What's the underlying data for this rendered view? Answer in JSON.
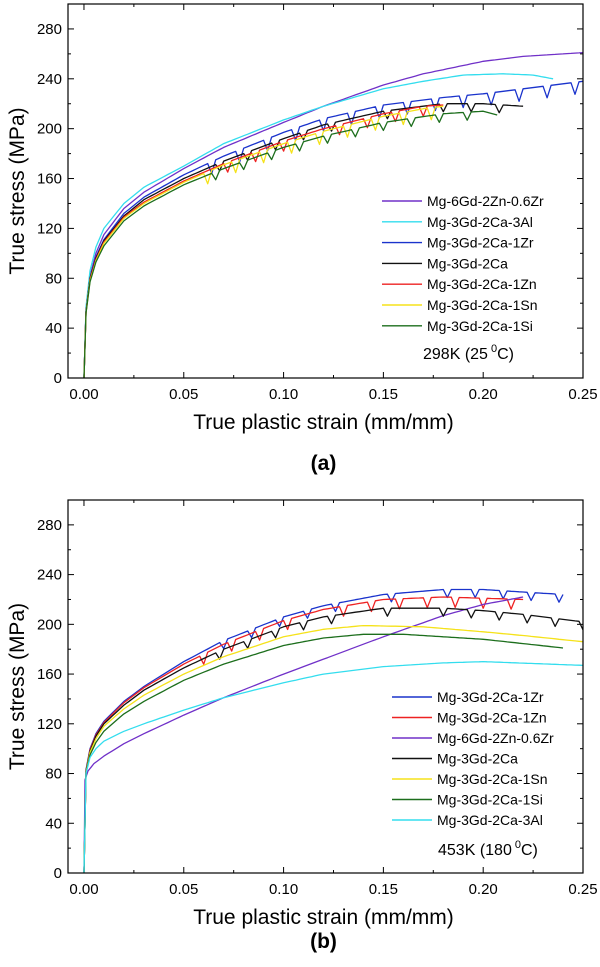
{
  "chart_data": [
    {
      "type": "line",
      "panel_label": "(a)",
      "xlabel": "True plastic strain (mm/mm)",
      "ylabel": "True stress (MPa)",
      "xlim": [
        -0.008,
        0.25
      ],
      "ylim": [
        0,
        300
      ],
      "xticks": [
        "0.00",
        "0.05",
        "0.10",
        "0.15",
        "0.20",
        "0.25"
      ],
      "yticks": [
        "0",
        "40",
        "80",
        "120",
        "160",
        "200",
        "240",
        "280"
      ],
      "annotation": {
        "main": "298K (25",
        "sup": "0",
        "tail": "C)"
      },
      "legend_position": "lower-right",
      "series": [
        {
          "name": "Mg-6Gd-2Zn-0.6Zr",
          "color": "#7030C8",
          "serrated": false,
          "x": [
            0,
            0.001,
            0.003,
            0.006,
            0.01,
            0.02,
            0.03,
            0.05,
            0.07,
            0.1,
            0.12,
            0.15,
            0.17,
            0.2,
            0.22,
            0.25
          ],
          "y": [
            0,
            55,
            82,
            100,
            115,
            136,
            149,
            168,
            185,
            205,
            218,
            235,
            244,
            254,
            258,
            261
          ]
        },
        {
          "name": "Mg-3Gd-2Ca-3Al",
          "color": "#33DDEE",
          "serrated": false,
          "x": [
            0,
            0.001,
            0.003,
            0.006,
            0.01,
            0.02,
            0.03,
            0.05,
            0.07,
            0.1,
            0.12,
            0.15,
            0.17,
            0.19,
            0.21,
            0.225,
            0.235
          ],
          "y": [
            0,
            57,
            86,
            105,
            120,
            140,
            153,
            170,
            188,
            207,
            218,
            232,
            238,
            243,
            244,
            243,
            240
          ]
        },
        {
          "name": "Mg-3Gd-2Ca-1Zr",
          "color": "#1A33CC",
          "serrated": true,
          "x": [
            0,
            0.001,
            0.003,
            0.006,
            0.01,
            0.02,
            0.03,
            0.05,
            0.07,
            0.1,
            0.12,
            0.15,
            0.18,
            0.2,
            0.22,
            0.25
          ],
          "y": [
            0,
            53,
            80,
            97,
            111,
            132,
            145,
            163,
            178,
            197,
            208,
            219,
            225,
            228,
            232,
            238
          ]
        },
        {
          "name": "Mg-3Gd-2Ca",
          "color": "#111111",
          "serrated": true,
          "x": [
            0,
            0.001,
            0.003,
            0.006,
            0.01,
            0.02,
            0.03,
            0.05,
            0.07,
            0.1,
            0.12,
            0.15,
            0.18,
            0.2,
            0.22
          ],
          "y": [
            0,
            53,
            80,
            96,
            110,
            130,
            143,
            160,
            174,
            192,
            203,
            214,
            220,
            220,
            218
          ]
        },
        {
          "name": "Mg-3Gd-2Ca-1Zn",
          "color": "#EE2222",
          "serrated": true,
          "x": [
            0,
            0.001,
            0.003,
            0.006,
            0.01,
            0.02,
            0.03,
            0.05,
            0.07,
            0.1,
            0.12,
            0.15,
            0.17,
            0.18
          ],
          "y": [
            0,
            53,
            79,
            95,
            109,
            129,
            141,
            158,
            172,
            190,
            200,
            212,
            218,
            219
          ]
        },
        {
          "name": "Mg-3Gd-2Ca-1Sn",
          "color": "#F5E21A",
          "serrated": true,
          "x": [
            0,
            0.001,
            0.003,
            0.006,
            0.01,
            0.02,
            0.03,
            0.05,
            0.07,
            0.1,
            0.12,
            0.15,
            0.17,
            0.18
          ],
          "y": [
            0,
            52,
            78,
            94,
            108,
            128,
            140,
            157,
            171,
            188,
            198,
            210,
            216,
            218
          ]
        },
        {
          "name": "Mg-3Gd-2Ca-1Si",
          "color": "#1C6E1C",
          "serrated": true,
          "x": [
            0,
            0.001,
            0.003,
            0.006,
            0.01,
            0.02,
            0.03,
            0.05,
            0.07,
            0.1,
            0.12,
            0.15,
            0.18,
            0.2,
            0.207
          ],
          "y": [
            0,
            52,
            77,
            93,
            106,
            126,
            138,
            155,
            168,
            185,
            194,
            205,
            212,
            214,
            211
          ]
        }
      ]
    },
    {
      "type": "line",
      "panel_label": "(b)",
      "xlabel": "True plastic strain (mm/mm)",
      "ylabel": "True stress (MPa)",
      "xlim": [
        -0.008,
        0.25
      ],
      "ylim": [
        0,
        300
      ],
      "xticks": [
        "0.00",
        "0.05",
        "0.10",
        "0.15",
        "0.20",
        "0.25"
      ],
      "yticks": [
        "0",
        "40",
        "80",
        "120",
        "160",
        "200",
        "240",
        "280"
      ],
      "annotation": {
        "main": "453K (180",
        "sup": "0",
        "tail": "C)"
      },
      "legend_position": "lower-right",
      "series": [
        {
          "name": "Mg-3Gd-2Ca-1Zr",
          "color": "#1A33CC",
          "serrated": true,
          "x": [
            0,
            0.001,
            0.003,
            0.006,
            0.01,
            0.02,
            0.03,
            0.05,
            0.07,
            0.1,
            0.12,
            0.15,
            0.18,
            0.2,
            0.22,
            0.24
          ],
          "y": [
            0,
            83,
            100,
            112,
            122,
            138,
            150,
            170,
            187,
            206,
            215,
            224,
            228,
            228,
            226,
            224
          ]
        },
        {
          "name": "Mg-3Gd-2Ca-1Zn",
          "color": "#EE2222",
          "serrated": true,
          "x": [
            0,
            0.001,
            0.003,
            0.006,
            0.01,
            0.02,
            0.03,
            0.05,
            0.07,
            0.1,
            0.12,
            0.15,
            0.18,
            0.2,
            0.22
          ],
          "y": [
            0,
            82,
            99,
            111,
            121,
            137,
            149,
            168,
            184,
            203,
            212,
            220,
            222,
            221,
            220
          ]
        },
        {
          "name": "Mg-6Gd-2Zn-0.6Zr",
          "color": "#7030C8",
          "serrated": false,
          "x": [
            0,
            0.0005,
            0.002,
            0.005,
            0.01,
            0.02,
            0.03,
            0.05,
            0.07,
            0.1,
            0.12,
            0.15,
            0.18,
            0.2,
            0.22
          ],
          "y": [
            0,
            75,
            82,
            88,
            94,
            104,
            112,
            127,
            141,
            160,
            172,
            190,
            207,
            216,
            222
          ]
        },
        {
          "name": "Mg-3Gd-2Ca",
          "color": "#111111",
          "serrated": true,
          "x": [
            0,
            0.001,
            0.003,
            0.006,
            0.01,
            0.02,
            0.03,
            0.05,
            0.07,
            0.1,
            0.12,
            0.15,
            0.18,
            0.2,
            0.22,
            0.25
          ],
          "y": [
            0,
            82,
            98,
            110,
            120,
            135,
            147,
            165,
            180,
            198,
            206,
            213,
            213,
            211,
            208,
            202
          ]
        },
        {
          "name": "Mg-3Gd-2Ca-1Sn",
          "color": "#F5E21A",
          "serrated": false,
          "x": [
            0,
            0.001,
            0.003,
            0.006,
            0.01,
            0.02,
            0.03,
            0.05,
            0.07,
            0.1,
            0.12,
            0.14,
            0.17,
            0.2,
            0.22,
            0.25
          ],
          "y": [
            0,
            81,
            97,
            108,
            118,
            132,
            143,
            160,
            174,
            190,
            196,
            199,
            198,
            194,
            191,
            186
          ]
        },
        {
          "name": "Mg-3Gd-2Ca-1Si",
          "color": "#1C6E1C",
          "serrated": false,
          "x": [
            0,
            0.001,
            0.003,
            0.006,
            0.01,
            0.02,
            0.03,
            0.05,
            0.07,
            0.1,
            0.12,
            0.14,
            0.16,
            0.2,
            0.24
          ],
          "y": [
            0,
            80,
            95,
            105,
            114,
            128,
            138,
            155,
            168,
            183,
            189,
            192,
            192,
            188,
            181
          ]
        },
        {
          "name": "Mg-3Gd-2Ca-3Al",
          "color": "#33DDEE",
          "serrated": false,
          "x": [
            0,
            0.001,
            0.003,
            0.006,
            0.01,
            0.02,
            0.03,
            0.05,
            0.07,
            0.1,
            0.12,
            0.15,
            0.18,
            0.2,
            0.25
          ],
          "y": [
            0,
            80,
            93,
            100,
            106,
            114,
            120,
            131,
            141,
            153,
            160,
            166,
            169,
            170,
            167
          ]
        }
      ]
    }
  ]
}
